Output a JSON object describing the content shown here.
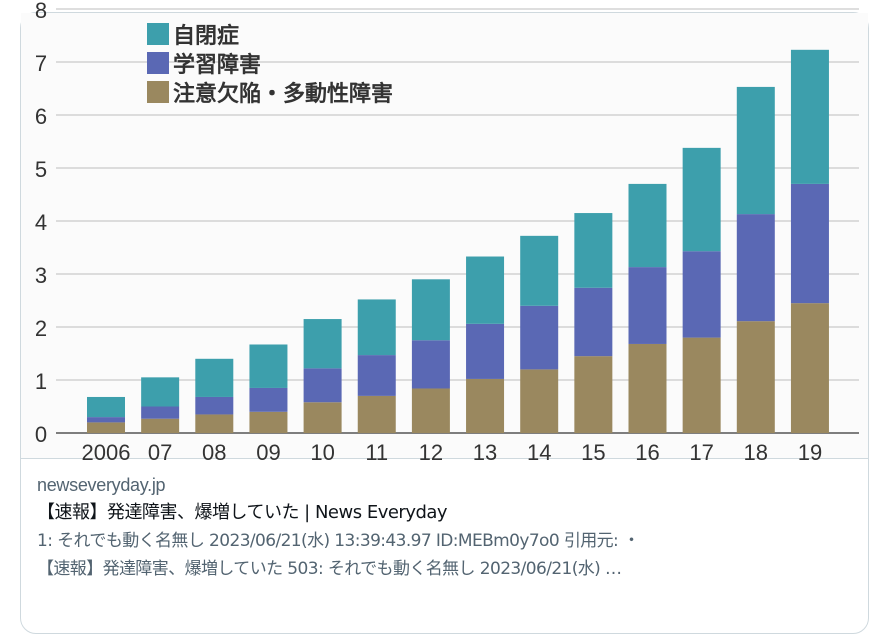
{
  "card": {
    "domain": "newseveryday.jp",
    "title": "【速報】発達障害、爆増していた | News Everyday",
    "description_line1": "1: それでも動く名無し 2023/06/21(水) 13:39:43.97 ID:MEBm0y7o0 引用元: ・",
    "description_line2": "【速報】発達障害、爆増していた 503: それでも動く名無し 2023/06/21(水) …"
  },
  "chart_data": {
    "type": "bar",
    "stacked": true,
    "categories": [
      "2006",
      "07",
      "08",
      "09",
      "10",
      "11",
      "12",
      "13",
      "14",
      "15",
      "16",
      "17",
      "18",
      "19"
    ],
    "series": [
      {
        "name": "注意欠陥・多動性障害",
        "color": "#9a885f",
        "values": [
          0.2,
          0.27,
          0.35,
          0.4,
          0.58,
          0.7,
          0.84,
          1.02,
          1.2,
          1.45,
          1.68,
          1.8,
          2.11,
          2.45
        ]
      },
      {
        "name": "学習障害",
        "color": "#5a68b4",
        "values": [
          0.1,
          0.23,
          0.33,
          0.45,
          0.64,
          0.77,
          0.91,
          1.04,
          1.2,
          1.29,
          1.45,
          1.63,
          2.02,
          2.25
        ]
      },
      {
        "name": "自閉症",
        "color": "#3d9fac",
        "values": [
          0.38,
          0.55,
          0.72,
          0.82,
          0.93,
          1.05,
          1.15,
          1.27,
          1.32,
          1.41,
          1.57,
          1.95,
          2.4,
          2.53
        ]
      }
    ],
    "legend_order": [
      "自閉症",
      "学習障害",
      "注意欠陥・多動性障害"
    ],
    "legend_colors": [
      "#3d9fac",
      "#5a68b4",
      "#9a885f"
    ],
    "yticks": [
      "0",
      "1",
      "2",
      "3",
      "4",
      "5",
      "6",
      "7",
      "8"
    ],
    "ylim": [
      0,
      8
    ],
    "grid": true,
    "legend_placement": "top-left"
  }
}
